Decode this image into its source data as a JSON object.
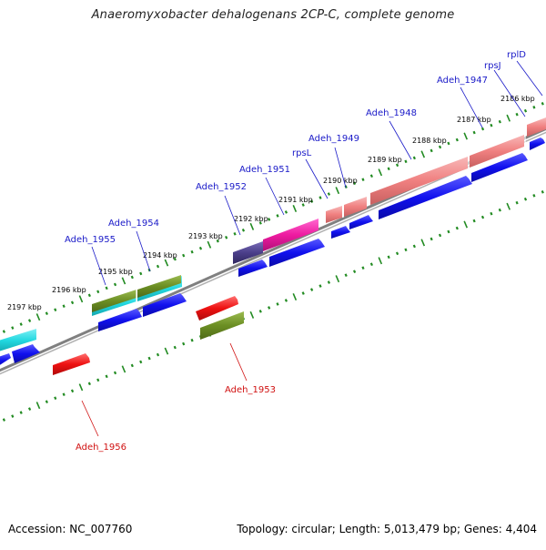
{
  "title": "Anaeromyxobacter dehalogenans 2CP-C, complete genome",
  "footer": {
    "accession": "Accession: NC_007760",
    "stats": "Topology: circular; Length: 5,013,479 bp; Genes: 4,404"
  },
  "axis": {
    "ticks": [
      "2197 kbp",
      "2196 kbp",
      "2195 kbp",
      "2194 kbp",
      "2193 kbp",
      "2192 kbp",
      "2191 kbp",
      "2190 kbp",
      "2189 kbp",
      "2188 kbp",
      "2187 kbp",
      "2186 kbp"
    ]
  },
  "genes_plus": [
    "Adeh_1956",
    "Adeh_1953"
  ],
  "genes_minus": [
    "Adeh_1955",
    "Adeh_1954",
    "Adeh_1952",
    "Adeh_1951",
    "rpsL",
    "Adeh_1949",
    "Adeh_1948",
    "Adeh_1947",
    "rpsJ",
    "rplD"
  ],
  "colors": {
    "backbone": "#808080",
    "ticks": "#228B22",
    "cds": "#1010ee",
    "label_minus": "#1a1ac8",
    "label_plus": "#d01010",
    "red": "#ee1111",
    "olive": "#6b8e23",
    "cyan": "#22d8e0",
    "salmon": "#f08080",
    "magenta": "#ee1aa0",
    "purple": "#4b3f8a"
  }
}
